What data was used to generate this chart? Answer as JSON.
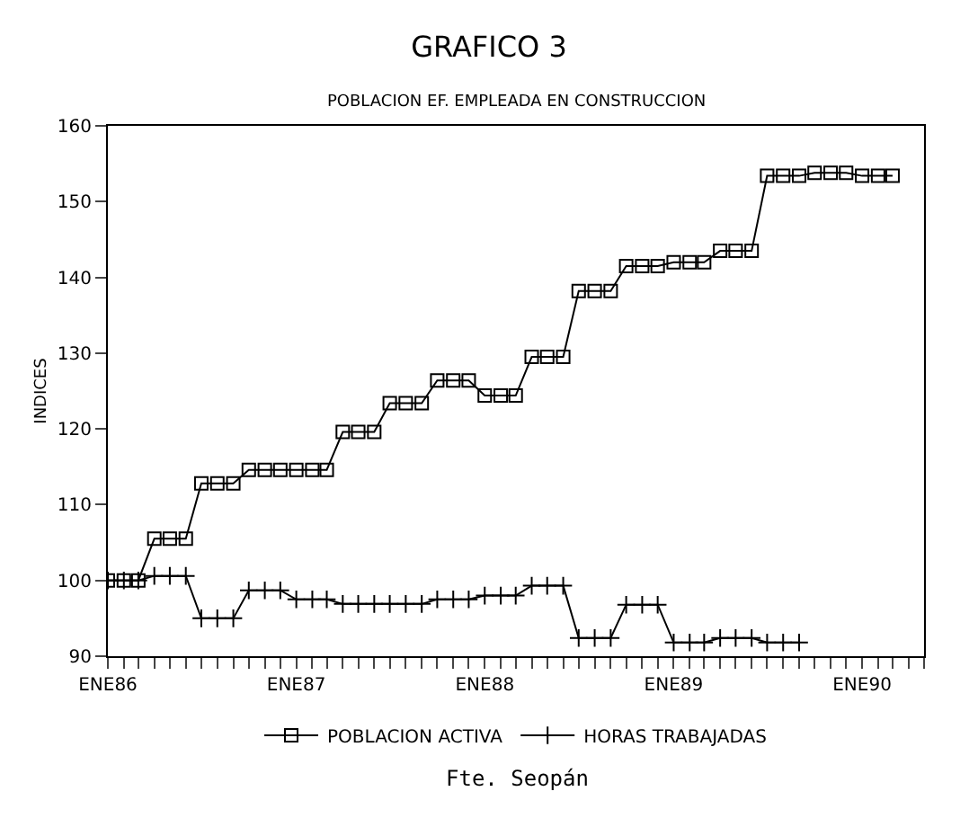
{
  "chart_data": {
    "type": "line",
    "title": "GRAFICO 3",
    "subtitle": "POBLACION EF. EMPLEADA EN CONSTRUCCION",
    "ylabel": "INDICES",
    "x": [
      "1986-01",
      "1986-02",
      "1986-03",
      "1986-04",
      "1986-05",
      "1986-06",
      "1986-07",
      "1986-08",
      "1986-09",
      "1986-10",
      "1986-11",
      "1986-12",
      "1987-01",
      "1987-02",
      "1987-03",
      "1987-04",
      "1987-05",
      "1987-06",
      "1987-07",
      "1987-08",
      "1987-09",
      "1987-10",
      "1987-11",
      "1987-12",
      "1988-01",
      "1988-02",
      "1988-03",
      "1988-04",
      "1988-05",
      "1988-06",
      "1988-07",
      "1988-08",
      "1988-09",
      "1988-10",
      "1988-11",
      "1988-12",
      "1989-01",
      "1989-02",
      "1989-03",
      "1989-04",
      "1989-05",
      "1989-06",
      "1989-07",
      "1989-08",
      "1989-09",
      "1989-10",
      "1989-11",
      "1989-12",
      "1990-01",
      "1990-02",
      "1990-03"
    ],
    "series": [
      {
        "name": "POBLACION ACTIVA",
        "color": "#000000",
        "marker": "square",
        "values": [
          100,
          100,
          100,
          105.5,
          105.5,
          105.5,
          112.8,
          112.8,
          112.8,
          114.6,
          114.6,
          114.6,
          114.6,
          114.6,
          114.6,
          119.6,
          119.6,
          119.6,
          123.4,
          123.4,
          123.4,
          126.4,
          126.4,
          126.4,
          124.4,
          124.4,
          124.4,
          129.5,
          129.5,
          129.5,
          138.2,
          138.2,
          138.2,
          141.5,
          141.5,
          141.5,
          142,
          142,
          142,
          143.5,
          143.5,
          143.5,
          153.4,
          153.4,
          153.4,
          153.8,
          153.8,
          153.8,
          153.4,
          153.4,
          153.4
        ]
      },
      {
        "name": "HORAS TRABAJADAS",
        "color": "#000000",
        "marker": "cross",
        "values": [
          100,
          100,
          100,
          100.6,
          100.6,
          100.6,
          95,
          95,
          95,
          98.7,
          98.7,
          98.7,
          97.5,
          97.5,
          97.5,
          96.9,
          96.9,
          96.9,
          96.9,
          96.9,
          96.9,
          97.5,
          97.5,
          97.5,
          98,
          98,
          98,
          99.3,
          99.3,
          99.3,
          92.4,
          92.4,
          92.4,
          96.8,
          96.8,
          96.8,
          91.8,
          91.8,
          91.8,
          92.4,
          92.4,
          92.4,
          91.8,
          91.8,
          91.8,
          null,
          null,
          null,
          null,
          null,
          null
        ]
      }
    ],
    "xlim": [
      "1986-01",
      "1990-05"
    ],
    "xticks": [
      {
        "value": "1986-01",
        "label": "ENE86"
      },
      {
        "value": "1986-02",
        "label": null
      },
      {
        "value": "1986-03",
        "label": null
      },
      {
        "value": "1986-04",
        "label": null
      },
      {
        "value": "1986-05",
        "label": null
      },
      {
        "value": "1986-06",
        "label": null
      },
      {
        "value": "1986-07",
        "label": null
      },
      {
        "value": "1986-08",
        "label": null
      },
      {
        "value": "1986-09",
        "label": null
      },
      {
        "value": "1986-10",
        "label": null
      },
      {
        "value": "1986-11",
        "label": null
      },
      {
        "value": "1986-12",
        "label": null
      },
      {
        "value": "1987-01",
        "label": "ENE87"
      },
      {
        "value": "1987-02",
        "label": null
      },
      {
        "value": "1987-03",
        "label": null
      },
      {
        "value": "1987-04",
        "label": null
      },
      {
        "value": "1987-05",
        "label": null
      },
      {
        "value": "1987-06",
        "label": null
      },
      {
        "value": "1987-07",
        "label": null
      },
      {
        "value": "1987-08",
        "label": null
      },
      {
        "value": "1987-09",
        "label": null
      },
      {
        "value": "1987-10",
        "label": null
      },
      {
        "value": "1987-11",
        "label": null
      },
      {
        "value": "1987-12",
        "label": null
      },
      {
        "value": "1988-01",
        "label": "ENE88"
      },
      {
        "value": "1988-02",
        "label": null
      },
      {
        "value": "1988-03",
        "label": null
      },
      {
        "value": "1988-04",
        "label": null
      },
      {
        "value": "1988-05",
        "label": null
      },
      {
        "value": "1988-06",
        "label": null
      },
      {
        "value": "1988-07",
        "label": null
      },
      {
        "value": "1988-08",
        "label": null
      },
      {
        "value": "1988-09",
        "label": null
      },
      {
        "value": "1988-10",
        "label": null
      },
      {
        "value": "1988-11",
        "label": null
      },
      {
        "value": "1988-12",
        "label": null
      },
      {
        "value": "1989-01",
        "label": "ENE89"
      },
      {
        "value": "1989-02",
        "label": null
      },
      {
        "value": "1989-03",
        "label": null
      },
      {
        "value": "1989-04",
        "label": null
      },
      {
        "value": "1989-05",
        "label": null
      },
      {
        "value": "1989-06",
        "label": null
      },
      {
        "value": "1989-07",
        "label": null
      },
      {
        "value": "1989-08",
        "label": null
      },
      {
        "value": "1989-09",
        "label": null
      },
      {
        "value": "1989-10",
        "label": null
      },
      {
        "value": "1989-11",
        "label": null
      },
      {
        "value": "1989-12",
        "label": null
      },
      {
        "value": "1990-01",
        "label": "ENE90"
      },
      {
        "value": "1990-02",
        "label": null
      },
      {
        "value": "1990-03",
        "label": null
      },
      {
        "value": "1990-04",
        "label": null
      },
      {
        "value": "1990-05",
        "label": null
      }
    ],
    "ylim": [
      90,
      160
    ],
    "yticks": [
      90,
      100,
      110,
      120,
      130,
      140,
      150,
      160
    ],
    "grid": false,
    "legend": "bottom",
    "line_style": "solid",
    "annotations": [
      "Fte. Seopán"
    ]
  }
}
